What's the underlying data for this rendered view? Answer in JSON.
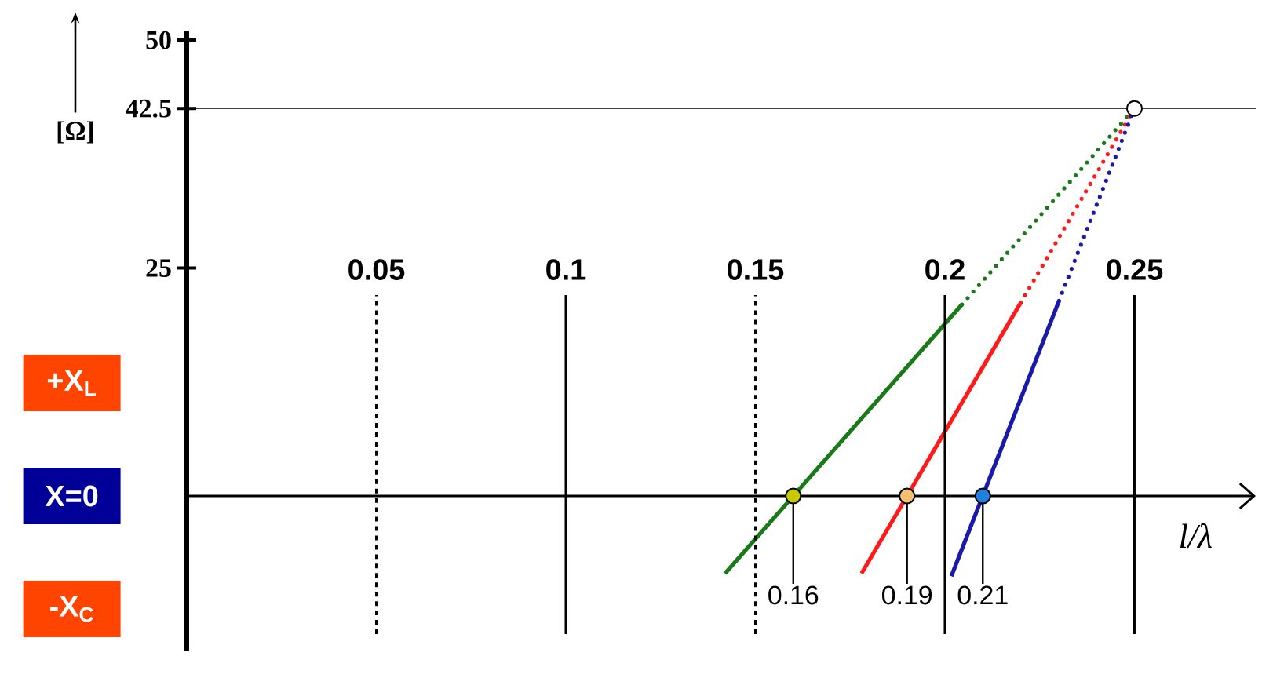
{
  "chart_data": {
    "type": "line",
    "xlabel": "l/λ",
    "ylabel": "[Ω]",
    "xlim": [
      0,
      0.282
    ],
    "ylim": [
      -17,
      51
    ],
    "yticks": [
      25,
      42.5,
      50
    ],
    "tick_labels": "y",
    "series": [
      {
        "color": "#1a7a1a",
        "line_style": "solid",
        "x": [
          0.142,
          0.2045
        ],
        "values": [
          -8.5,
          21
        ]
      },
      {
        "color": "#1a7a1a",
        "line_style": "dotted",
        "x": [
          0.2045,
          0.25
        ],
        "values": [
          21,
          42.5
        ]
      },
      {
        "color": "#ff1a1a",
        "line_style": "solid",
        "x": [
          0.178,
          0.22
        ],
        "values": [
          -8.5,
          21.2
        ]
      },
      {
        "color": "#ff1a1a",
        "line_style": "dotted",
        "x": [
          0.22,
          0.25
        ],
        "values": [
          21.2,
          42.5
        ]
      },
      {
        "color": "#1a1aaa",
        "line_style": "solid",
        "x": [
          0.2017,
          0.2301
        ],
        "values": [
          -8.8,
          21.4
        ]
      },
      {
        "color": "#1a1aaa",
        "line_style": "dotted",
        "x": [
          0.2301,
          0.25
        ],
        "values": [
          21.4,
          42.5
        ]
      },
      {
        "type": "scatter",
        "marker": "circle",
        "x": [
          0.16,
          0.19,
          0.21
        ],
        "values": [
          0,
          0,
          0
        ],
        "colors": [
          "#c8c800",
          "#f5c070",
          "#2080e0"
        ]
      },
      {
        "type": "scatter",
        "marker": "circle",
        "x": [
          0.25
        ],
        "values": [
          42.5
        ],
        "colors": [
          "#ffffff"
        ]
      }
    ],
    "ref_lines": [
      {
        "axis": "x",
        "value": 0.05,
        "label": "0.05",
        "line_style": "dashed"
      },
      {
        "axis": "x",
        "value": 0.1,
        "label": "0.1",
        "line_style": "solid"
      },
      {
        "axis": "x",
        "value": 0.15,
        "label": "0.15",
        "line_style": "dashed"
      },
      {
        "axis": "x",
        "value": 0.2,
        "label": "0.2",
        "line_style": "solid"
      },
      {
        "axis": "x",
        "value": 0.25,
        "label": "0.25",
        "line_style": "solid"
      },
      {
        "axis": "y",
        "value": 42.5,
        "line_style": "solid"
      }
    ],
    "annotations": [
      "+X$_{L}$",
      "X=0",
      "-X$_{C}$",
      {
        "text": "0.16",
        "x": 0.16,
        "y": 0
      },
      {
        "text": "0.19",
        "x": 0.19,
        "y": 0
      },
      {
        "text": "0.21",
        "x": 0.21,
        "y": 0
      }
    ]
  }
}
